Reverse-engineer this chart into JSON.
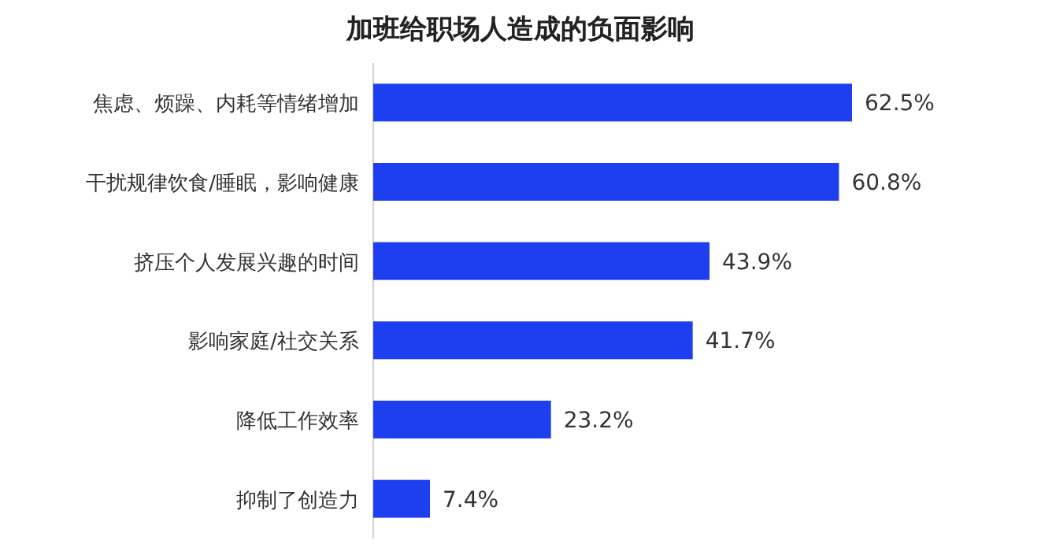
{
  "chart_data": {
    "type": "bar",
    "orientation": "horizontal",
    "title": "加班给职场人造成的负面影响",
    "categories": [
      "焦虑、烦躁、内耗等情绪增加",
      "干扰规律饮食/睡眠，影响健康",
      "挤压个人发展兴趣的时间",
      "影响家庭/社交关系",
      "降低工作效率",
      "抑制了创造力"
    ],
    "values": [
      62.5,
      60.8,
      43.9,
      41.7,
      23.2,
      7.4
    ],
    "value_labels": [
      "62.5%",
      "60.8%",
      "43.9%",
      "41.7%",
      "23.2%",
      "7.4%"
    ],
    "color": "#1e3ff0"
  }
}
